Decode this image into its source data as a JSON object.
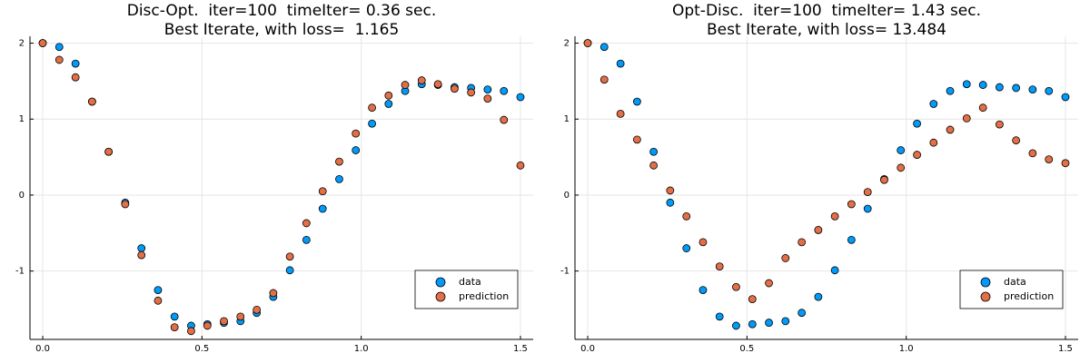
{
  "chart_data": [
    {
      "type": "scatter",
      "title": "Disc-Opt.  iter=100  timeIter= 0.36 sec.",
      "subtitle": "Best Iterate, with loss=  1.165",
      "x": [
        0,
        0.052,
        0.103,
        0.155,
        0.207,
        0.259,
        0.31,
        0.362,
        0.414,
        0.466,
        0.517,
        0.569,
        0.621,
        0.672,
        0.724,
        0.776,
        0.828,
        0.879,
        0.931,
        0.983,
        1.034,
        1.086,
        1.138,
        1.19,
        1.241,
        1.293,
        1.345,
        1.397,
        1.448,
        1.5
      ],
      "series": [
        {
          "name": "data",
          "color": "#009af9",
          "values": [
            2.0,
            1.95,
            1.73,
            1.23,
            0.57,
            -0.1,
            -0.7,
            -1.25,
            -1.6,
            -1.72,
            -1.7,
            -1.68,
            -1.66,
            -1.55,
            -1.34,
            -0.99,
            -0.59,
            -0.18,
            0.21,
            0.59,
            0.94,
            1.2,
            1.37,
            1.46,
            1.45,
            1.42,
            1.41,
            1.39,
            1.37,
            1.29
          ]
        },
        {
          "name": "prediction",
          "color": "#e26f46",
          "values": [
            2.0,
            1.78,
            1.55,
            1.23,
            0.57,
            -0.12,
            -0.79,
            -1.39,
            -1.74,
            -1.79,
            -1.72,
            -1.66,
            -1.6,
            -1.51,
            -1.29,
            -0.81,
            -0.37,
            0.05,
            0.44,
            0.81,
            1.15,
            1.31,
            1.45,
            1.51,
            1.46,
            1.4,
            1.35,
            1.27,
            0.99,
            0.39
          ]
        }
      ],
      "xlim": [
        -0.04,
        1.54
      ],
      "ylim": [
        -1.9,
        2.09
      ],
      "xticks": [
        {
          "value": 0,
          "label": "0.0"
        },
        0.5,
        {
          "value": 1,
          "label": "1.0"
        },
        1.5
      ],
      "yticks": [
        -1,
        0,
        1,
        2
      ],
      "grid": true,
      "legend": "bottom-right"
    },
    {
      "type": "scatter",
      "title": "Opt-Disc.  iter=100  timeIter= 1.43 sec.",
      "subtitle": "Best Iterate, with loss= 13.484",
      "x": [
        0,
        0.052,
        0.103,
        0.155,
        0.207,
        0.259,
        0.31,
        0.362,
        0.414,
        0.466,
        0.517,
        0.569,
        0.621,
        0.672,
        0.724,
        0.776,
        0.828,
        0.879,
        0.931,
        0.983,
        1.034,
        1.086,
        1.138,
        1.19,
        1.241,
        1.293,
        1.345,
        1.397,
        1.448,
        1.5
      ],
      "series": [
        {
          "name": "data",
          "color": "#009af9",
          "values": [
            2.0,
            1.95,
            1.73,
            1.23,
            0.57,
            -0.1,
            -0.7,
            -1.25,
            -1.6,
            -1.72,
            -1.7,
            -1.68,
            -1.66,
            -1.55,
            -1.34,
            -0.99,
            -0.59,
            -0.18,
            0.21,
            0.59,
            0.94,
            1.2,
            1.37,
            1.46,
            1.45,
            1.42,
            1.41,
            1.39,
            1.37,
            1.29
          ]
        },
        {
          "name": "prediction",
          "color": "#e26f46",
          "values": [
            2.0,
            1.52,
            1.07,
            0.73,
            0.39,
            0.06,
            -0.28,
            -0.62,
            -0.94,
            -1.21,
            -1.37,
            -1.16,
            -0.83,
            -0.62,
            -0.46,
            -0.28,
            -0.12,
            0.04,
            0.2,
            0.36,
            0.53,
            0.69,
            0.86,
            1.01,
            1.15,
            0.93,
            0.72,
            0.55,
            0.47,
            0.42
          ]
        }
      ],
      "xlim": [
        -0.04,
        1.54
      ],
      "ylim": [
        -1.9,
        2.09
      ],
      "xticks": [
        {
          "value": 0,
          "label": "0.0"
        },
        0.5,
        {
          "value": 1,
          "label": "1.0"
        },
        1.5
      ],
      "yticks": [
        -1,
        0,
        1,
        2
      ],
      "grid": true,
      "legend": "bottom-right"
    }
  ]
}
